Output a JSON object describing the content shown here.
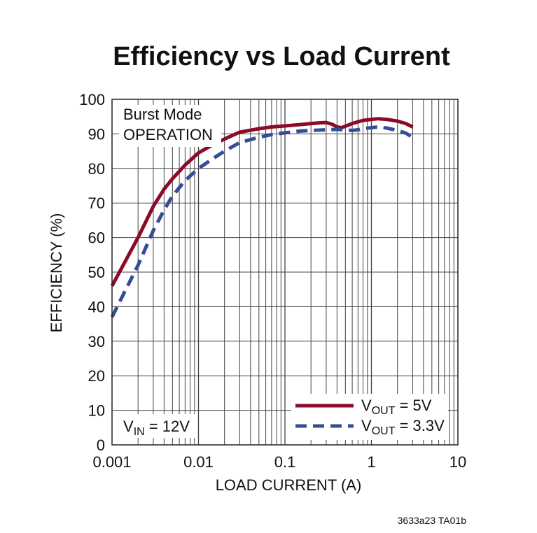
{
  "chart_data": {
    "type": "line",
    "title": "Efficiency vs Load Current",
    "xlabel": "LOAD CURRENT (A)",
    "ylabel": "EFFICIENCY (%)",
    "x_scale": "log",
    "xlim": [
      0.001,
      10
    ],
    "ylim": [
      0,
      100
    ],
    "x_ticks": [
      "0.001",
      "0.01",
      "0.1",
      "1",
      "10"
    ],
    "y_ticks": [
      "0",
      "10",
      "20",
      "30",
      "40",
      "50",
      "60",
      "70",
      "80",
      "90",
      "100"
    ],
    "grid": true,
    "series": [
      {
        "name": "VOUT = 5V",
        "color": "#8b0a2a",
        "style": "solid",
        "x": [
          0.001,
          0.002,
          0.003,
          0.004,
          0.005,
          0.007,
          0.01,
          0.015,
          0.02,
          0.03,
          0.05,
          0.07,
          0.1,
          0.15,
          0.2,
          0.25,
          0.3,
          0.35,
          0.4,
          0.45,
          0.5,
          0.6,
          0.7,
          0.8,
          1.0,
          1.2,
          1.5,
          2.0,
          2.5,
          3.0
        ],
        "y": [
          46,
          60,
          69,
          74,
          77,
          81,
          84.5,
          87,
          88.5,
          90.5,
          91.5,
          92,
          92.3,
          92.7,
          93,
          93.2,
          93.3,
          92.8,
          92,
          91.8,
          92.2,
          93,
          93.5,
          93.9,
          94.2,
          94.4,
          94.2,
          93.7,
          93,
          92
        ]
      },
      {
        "name": "VOUT = 3.3V",
        "color": "#344d97",
        "style": "dashed",
        "x": [
          0.001,
          0.002,
          0.003,
          0.004,
          0.005,
          0.007,
          0.01,
          0.015,
          0.02,
          0.03,
          0.05,
          0.07,
          0.1,
          0.15,
          0.2,
          0.3,
          0.4,
          0.5,
          0.6,
          0.7,
          0.8,
          1.0,
          1.2,
          1.5,
          2.0,
          2.5,
          3.0
        ],
        "y": [
          37,
          52,
          62,
          68,
          72,
          76.5,
          80,
          83,
          85,
          87.5,
          89,
          89.8,
          90.3,
          90.8,
          91,
          91.2,
          91.3,
          91.2,
          91,
          91.2,
          91.5,
          91.8,
          92,
          91.7,
          91,
          90.2,
          89
        ]
      }
    ],
    "legend": [
      {
        "label_main": "V",
        "label_sub": "OUT",
        "label_rest": " = 5V"
      },
      {
        "label_main": "V",
        "label_sub": "OUT",
        "label_rest": " = 3.3V"
      }
    ],
    "legend_position": "bottom-right",
    "annotations": {
      "mode_line1": "Burst Mode",
      "mode_line2": "OPERATION",
      "vin_main": "V",
      "vin_sub": "IN",
      "vin_rest": " = 12V"
    },
    "figure_code": "3633a23 TA01b"
  }
}
